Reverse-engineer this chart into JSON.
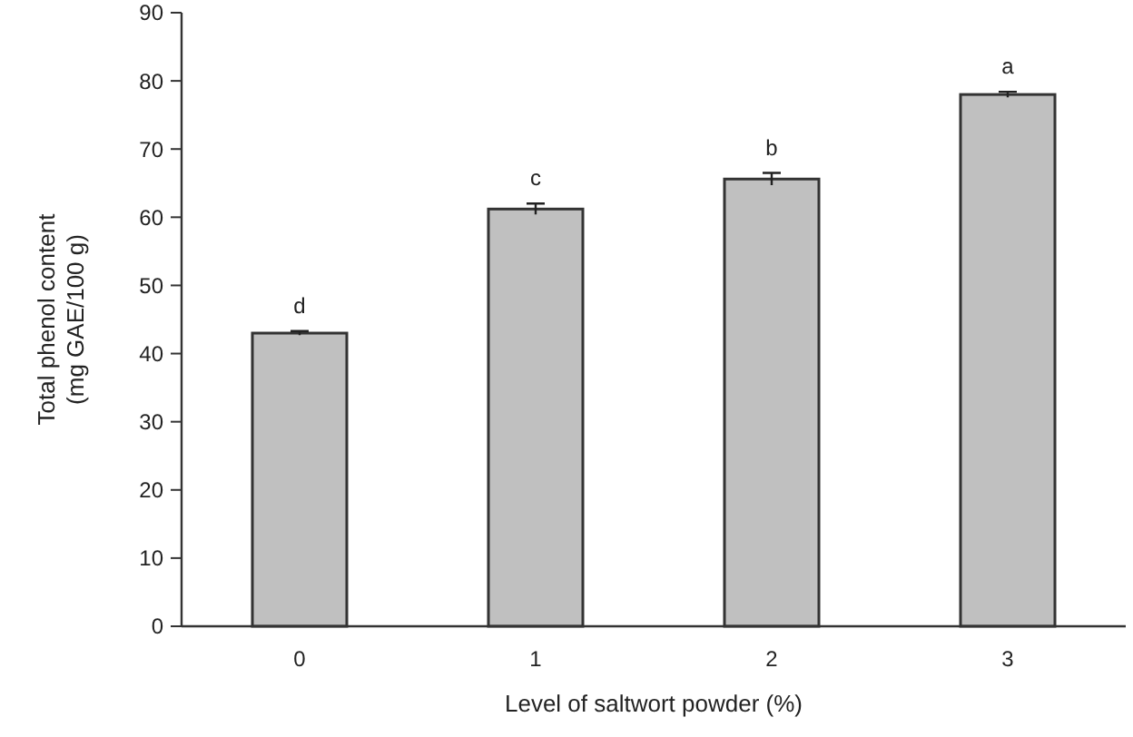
{
  "chart_data": {
    "type": "bar",
    "xlabel": "Level of saltwort powder (%)",
    "ylabel": "Total phenol content\n(mg GAE/100 g)",
    "categories": [
      "0",
      "1",
      "2",
      "3"
    ],
    "values": [
      43,
      61.2,
      65.6,
      78
    ],
    "errors": [
      0.3,
      0.8,
      0.9,
      0.4
    ],
    "color": "#c0c0c0",
    "ylim": [
      0,
      90
    ],
    "yticks": [
      0,
      10,
      20,
      30,
      40,
      50,
      60,
      70,
      80,
      90
    ],
    "annotations": [
      {
        "text": "d",
        "x": "0",
        "y": 43.3
      },
      {
        "text": "c",
        "x": "1",
        "y": 62
      },
      {
        "text": "b",
        "x": "2",
        "y": 66.5
      },
      {
        "text": "a",
        "x": "3",
        "y": 78.4
      }
    ]
  }
}
